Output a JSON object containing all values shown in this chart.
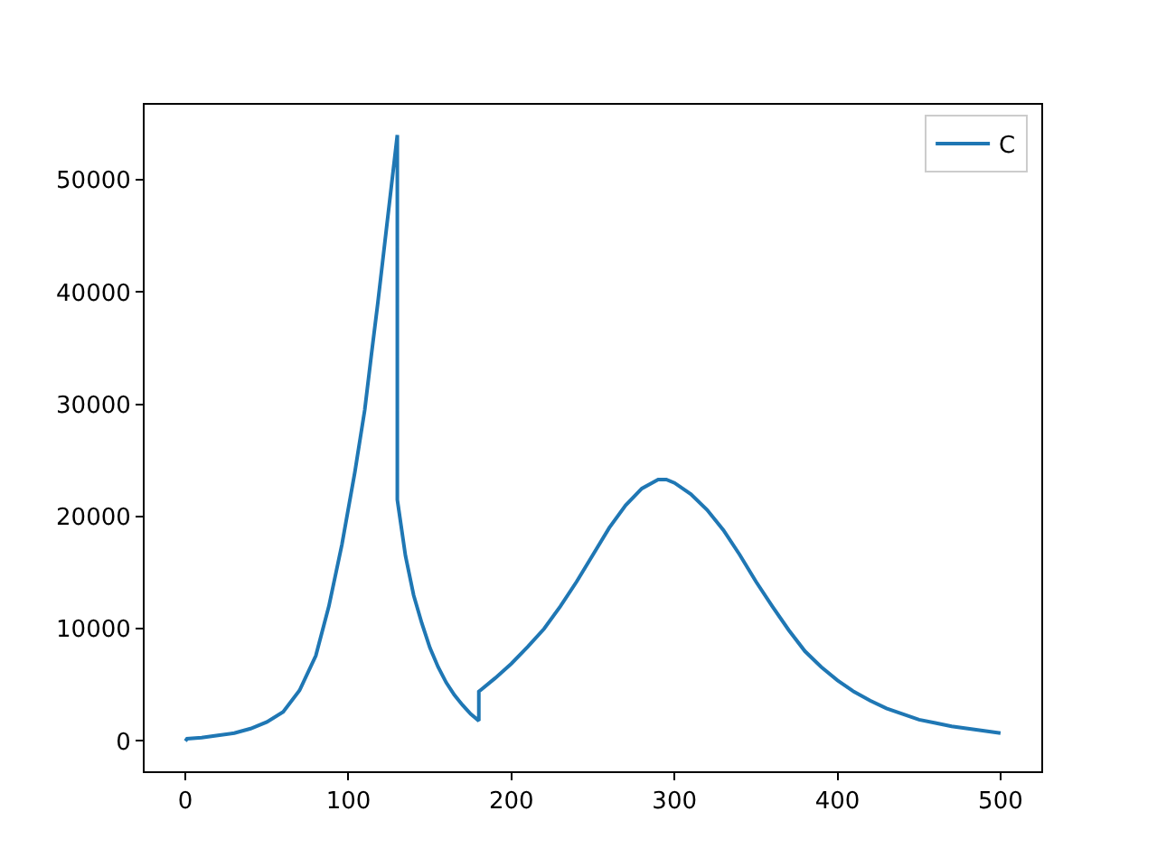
{
  "chart_data": {
    "type": "line",
    "x": [
      0,
      1,
      10,
      20,
      30,
      40,
      50,
      60,
      70,
      80,
      88,
      96,
      104,
      110,
      114,
      118,
      122,
      126,
      130,
      130,
      135,
      140,
      145,
      150,
      155,
      160,
      165,
      170,
      175,
      180,
      180,
      190,
      200,
      210,
      220,
      230,
      240,
      250,
      260,
      270,
      280,
      290,
      295,
      300,
      310,
      320,
      330,
      340,
      350,
      360,
      370,
      380,
      390,
      400,
      410,
      420,
      430,
      440,
      450,
      460,
      470,
      480,
      490,
      500
    ],
    "series": [
      {
        "name": "C",
        "color": "#1f77b4",
        "values": [
          0,
          200,
          300,
          500,
          700,
          1100,
          1700,
          2600,
          4500,
          7600,
          12000,
          17500,
          24000,
          29500,
          34300,
          39000,
          44000,
          49000,
          54000,
          21500,
          16500,
          13000,
          10500,
          8300,
          6600,
          5200,
          4100,
          3200,
          2400,
          1800,
          4400,
          5600,
          6900,
          8400,
          10000,
          12000,
          14200,
          16600,
          19000,
          21000,
          22500,
          23300,
          23300,
          23000,
          22000,
          20600,
          18800,
          16600,
          14200,
          12000,
          9900,
          8000,
          6600,
          5400,
          4400,
          3600,
          2900,
          2400,
          1900,
          1600,
          1300,
          1100,
          900,
          700
        ]
      }
    ],
    "xlim": [
      -25,
      525
    ],
    "xticks": [
      0,
      100,
      200,
      300,
      400,
      500
    ],
    "ylim": [
      -2700,
      56700
    ],
    "yticks": [
      0,
      10000,
      20000,
      30000,
      40000,
      50000
    ],
    "grid": false,
    "legend": "top right",
    "marker": "none",
    "line_style": "solid"
  }
}
